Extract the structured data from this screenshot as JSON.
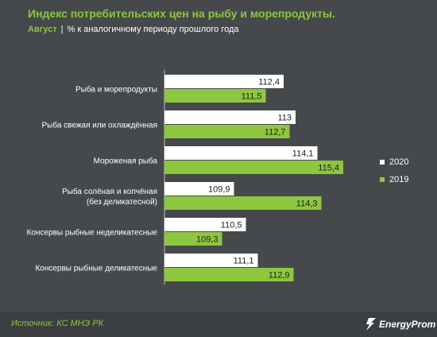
{
  "title": "Индекс потребительских цен на рыбу и морепродукты.",
  "subtitle": {
    "month": "Август",
    "separator": "|",
    "unit": "% к аналогичному периоду прошлого года"
  },
  "source": "Источник: КС МНЭ РК",
  "logo_text": "EnergyProm",
  "colors": {
    "series_2020": "#ffffff",
    "series_2019": "#8dc63f",
    "background": "#46494b",
    "accent": "#8dc63f"
  },
  "chart_data": {
    "type": "bar",
    "orientation": "horizontal",
    "categories": [
      [
        "Рыба и морепродукты"
      ],
      [
        "Рыба свежая или охлаждённая"
      ],
      [
        "Мороженая рыба"
      ],
      [
        "Рыба солёная и копчёная",
        "(без деликатесной)"
      ],
      [
        "Консервы рыбные неделикатесные"
      ],
      [
        "Консервы рыбные деликатесные"
      ]
    ],
    "series": [
      {
        "name": "2020",
        "values": [
          112.4,
          113,
          114.1,
          109.9,
          110.5,
          111.1
        ],
        "labels": [
          "112,4",
          "113",
          "114,1",
          "109,9",
          "110,5",
          "111,1"
        ],
        "color": "#ffffff"
      },
      {
        "name": "2019",
        "values": [
          111.5,
          112.7,
          115.4,
          114.3,
          109.3,
          112.9
        ],
        "labels": [
          "111,5",
          "112,7",
          "115,4",
          "114,3",
          "109,3",
          "112,9"
        ],
        "color": "#8dc63f"
      }
    ],
    "xlim": [
      106.4,
      116.6
    ],
    "grid": false,
    "legend_position": "right"
  }
}
